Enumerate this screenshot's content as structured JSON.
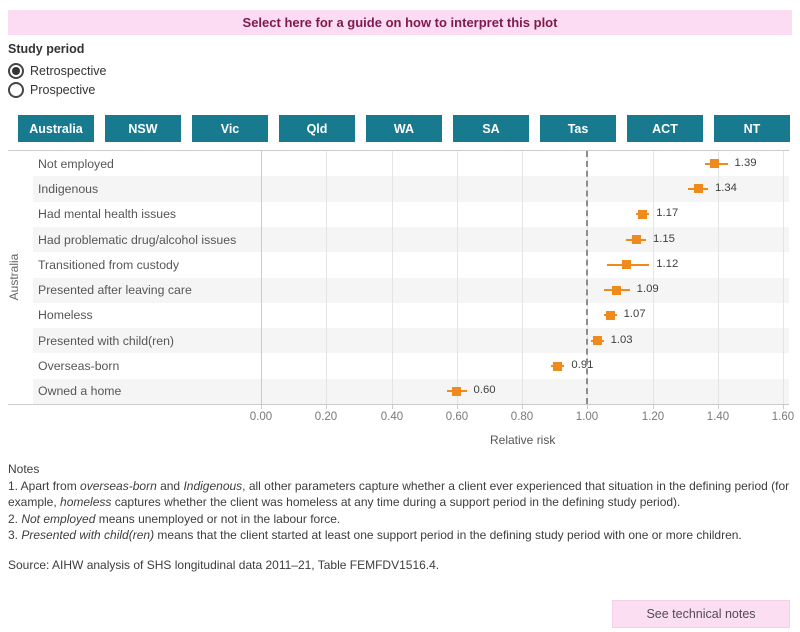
{
  "banner": {
    "label": "Select here for a guide on how to interpret this plot"
  },
  "study_period": {
    "label": "Study period",
    "options": [
      {
        "label": "Retrospective",
        "selected": true
      },
      {
        "label": "Prospective",
        "selected": false
      }
    ]
  },
  "tabs": [
    "Australia",
    "NSW",
    "Vic",
    "Qld",
    "WA",
    "SA",
    "Tas",
    "ACT",
    "NT"
  ],
  "active_tab": "Australia",
  "chart_data": {
    "type": "scatter",
    "orientation": "horizontal",
    "panel_label": "Australia",
    "categories": [
      "Not employed",
      "Indigenous",
      "Had mental health issues",
      "Had problematic drug/alcohol issues",
      "Transitioned from custody",
      "Presented after leaving care",
      "Homeless",
      "Presented with child(ren)",
      "Overseas-born",
      "Owned a home"
    ],
    "values": [
      1.39,
      1.34,
      1.17,
      1.15,
      1.12,
      1.09,
      1.07,
      1.03,
      0.91,
      0.6
    ],
    "ci_low": [
      1.36,
      1.31,
      1.15,
      1.12,
      1.06,
      1.05,
      1.05,
      1.01,
      0.89,
      0.57
    ],
    "ci_high": [
      1.43,
      1.37,
      1.19,
      1.18,
      1.19,
      1.13,
      1.09,
      1.05,
      0.93,
      0.63
    ],
    "value_labels": [
      "1.39",
      "1.34",
      "1.17",
      "1.15",
      "1.12",
      "1.09",
      "1.07",
      "1.03",
      "0.91",
      "0.60"
    ],
    "xlabel": "Relative risk",
    "xlim": [
      0,
      1.6
    ],
    "xticks": [
      "0.00",
      "0.20",
      "0.40",
      "0.60",
      "0.80",
      "1.00",
      "1.20",
      "1.40",
      "1.60"
    ],
    "reference_line": 1.0,
    "marker_color": "#ef8a1d",
    "grid": true,
    "row_banding": true
  },
  "notes": {
    "title": "Notes",
    "note1": [
      {
        "text": "1.  Apart from "
      },
      {
        "text": "overseas-born",
        "italic": true
      },
      {
        "text": "  and "
      },
      {
        "text": "Indigenous",
        "italic": true
      },
      {
        "text": ", all other parameters capture whether a client ever experienced that situation in the defining period (for example, "
      },
      {
        "text": "homeless",
        "italic": true
      },
      {
        "text": "  captures whether the client was homeless at any time during a support period in the defining study period)."
      }
    ],
    "note2": [
      {
        "text": "2.  "
      },
      {
        "text": "Not employed",
        "italic": true
      },
      {
        "text": "  means unemployed or not in the labour force."
      }
    ],
    "note3": [
      {
        "text": "3.  "
      },
      {
        "text": "Presented with child(ren)",
        "italic": true
      },
      {
        "text": "  means that the client started at least one support period in the defining study period with one or more children."
      }
    ]
  },
  "source": "Source: AIHW analysis of SHS longitudinal data 2011–21, Table FEMFDV1516.4.",
  "tech_button": {
    "label": "See technical notes"
  },
  "colors": {
    "teal": "#187a8e",
    "pink_bg": "#fbdcf2",
    "banner_text": "#7d1a4d",
    "orange": "#ef8a1d",
    "band_gray": "#f5f5f5"
  }
}
